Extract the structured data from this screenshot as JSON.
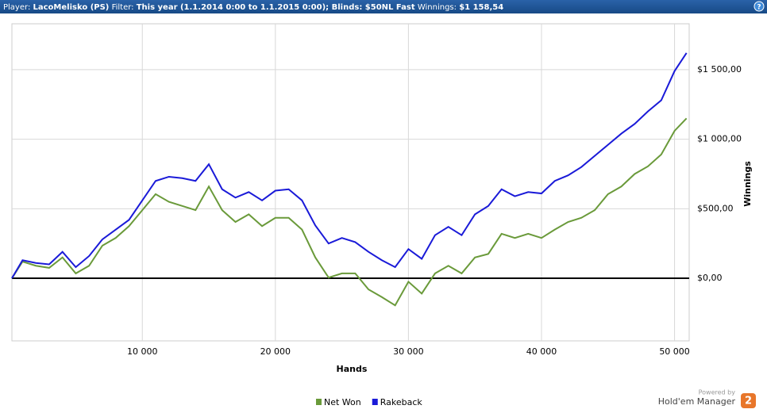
{
  "header": {
    "player_label": "Player:",
    "player": "LacoMelisko (PS)",
    "filter_label": "Filter:",
    "filter": "This year (1.1.2014 0:00 to 1.1.2015 0:00); Blinds: $50NL Fast",
    "winnings_label": "Winnings:",
    "winnings": "$1 158,54",
    "help": "?"
  },
  "footer": {
    "powered": "Powered by",
    "brand": "Hold'em Manager",
    "logo": "2"
  },
  "chart_data": {
    "type": "line",
    "x_label": "Hands",
    "y_label": "Winnings",
    "x": [
      200,
      1000,
      2000,
      3000,
      4000,
      5000,
      6000,
      7000,
      8000,
      9000,
      10000,
      11000,
      12000,
      13000,
      14000,
      15000,
      16000,
      17000,
      18000,
      19000,
      20000,
      21000,
      22000,
      23000,
      24000,
      25000,
      26000,
      27000,
      28000,
      29000,
      30000,
      31000,
      32000,
      33000,
      34000,
      35000,
      36000,
      37000,
      38000,
      39000,
      40000,
      41000,
      42000,
      43000,
      44000,
      45000,
      46000,
      47000,
      48000,
      49000,
      50000,
      50900
    ],
    "series": [
      {
        "name": "Net Won",
        "color": "#6a9a3a",
        "values": [
          0,
          120,
          90,
          75,
          150,
          35,
          90,
          235,
          290,
          375,
          490,
          605,
          550,
          520,
          490,
          660,
          490,
          405,
          460,
          375,
          435,
          435,
          350,
          150,
          5,
          35,
          35,
          -80,
          -135,
          -195,
          -25,
          -110,
          35,
          90,
          35,
          150,
          175,
          320,
          290,
          320,
          290,
          350,
          405,
          435,
          490,
          605,
          660,
          750,
          805,
          890,
          1060,
          1150
        ]
      },
      {
        "name": "Rakeback",
        "color": "#1a1ad8",
        "values": [
          0,
          130,
          110,
          100,
          190,
          80,
          160,
          280,
          350,
          420,
          560,
          700,
          730,
          720,
          700,
          820,
          640,
          580,
          620,
          560,
          630,
          640,
          560,
          380,
          250,
          290,
          260,
          190,
          130,
          80,
          210,
          140,
          310,
          370,
          310,
          460,
          520,
          640,
          590,
          620,
          610,
          700,
          740,
          800,
          880,
          960,
          1040,
          1110,
          1200,
          1280,
          1490,
          1620
        ]
      }
    ],
    "xlim": [
      200,
      51100
    ],
    "ylim": [
      -450,
      1830
    ],
    "xticks": [
      {
        "value": 10000,
        "label": "10 000"
      },
      {
        "value": 20000,
        "label": "20 000"
      },
      {
        "value": 30000,
        "label": "30 000"
      },
      {
        "value": 40000,
        "label": "40 000"
      },
      {
        "value": 50000,
        "label": "50 000"
      }
    ],
    "yticks": [
      {
        "value": 0,
        "label": "$0,00"
      },
      {
        "value": 500,
        "label": "$500,00"
      },
      {
        "value": 1000,
        "label": "$1 000,00"
      },
      {
        "value": 1500,
        "label": "$1 500,00"
      }
    ],
    "grid": true,
    "legend": "bottom"
  }
}
